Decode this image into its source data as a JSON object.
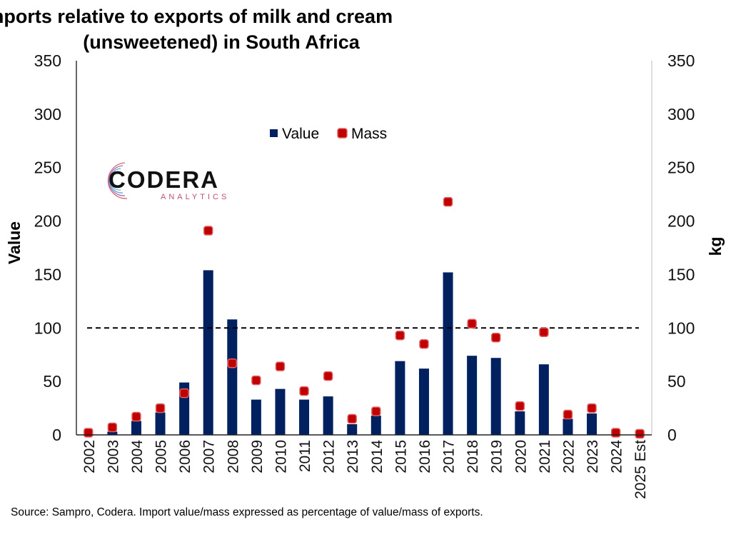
{
  "chart_data": {
    "type": "bar",
    "title_lines": [
      "Imports relative to exports of milk and cream",
      "(unsweetened) in South Africa"
    ],
    "ylabel": "Value",
    "y2label": "kg",
    "ylim": [
      0,
      350
    ],
    "y2lim": [
      0,
      350
    ],
    "yticks": [
      "0",
      "50",
      "100",
      "150",
      "200",
      "250",
      "300",
      "350"
    ],
    "reference_line": 100,
    "legend_placement": "top-center",
    "categories": [
      "2002",
      "2003",
      "2004",
      "2005",
      "2006",
      "2007",
      "2008",
      "2009",
      "2010",
      "2011",
      "2012",
      "2013",
      "2014",
      "2015",
      "2016",
      "2017",
      "2018",
      "2019",
      "2020",
      "2021",
      "2022",
      "2023",
      "2024",
      "2025 Est"
    ],
    "series": [
      {
        "name": "Value",
        "type": "bar",
        "color": "#002060",
        "values": [
          0.5,
          3,
          13,
          21,
          49,
          154,
          108,
          33,
          43,
          33,
          36,
          10,
          18,
          69,
          62,
          152,
          74,
          72,
          22,
          66,
          15,
          20,
          0,
          0
        ]
      },
      {
        "name": "Mass",
        "type": "scatter",
        "axis": "right",
        "color": "#c00000",
        "values": [
          2,
          7,
          17,
          25,
          39,
          191,
          67,
          51,
          64,
          41,
          55,
          15,
          22,
          93,
          85,
          218,
          104,
          91,
          27,
          96,
          19,
          25,
          2,
          1
        ]
      }
    ]
  },
  "logo": {
    "name": "CODERA",
    "sub": "ANALYTICS"
  },
  "source": "Source: Sampro, Codera. Import value/mass expressed as percentage of value/mass of exports."
}
